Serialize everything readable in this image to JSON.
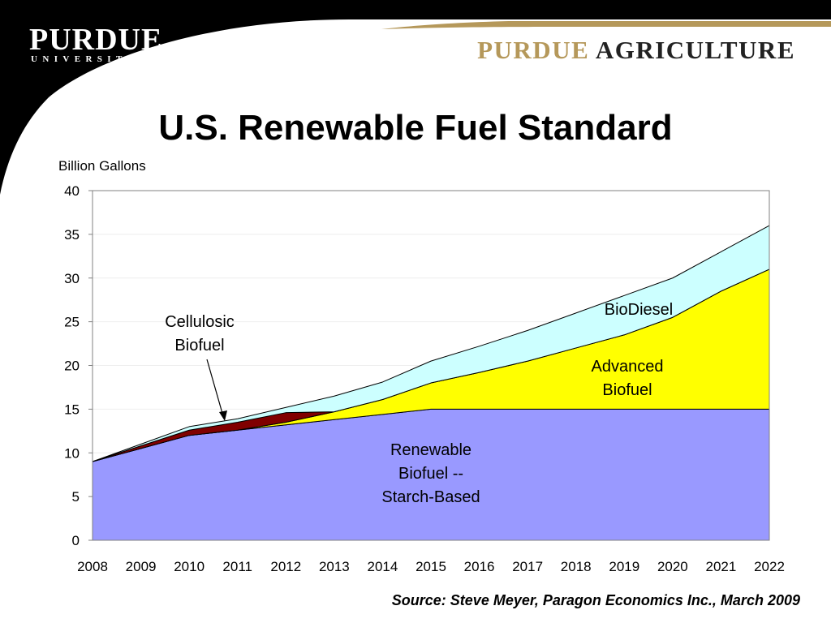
{
  "header": {
    "logo_main": "PURDUE",
    "logo_sub": "UNIVERSITY",
    "brand_part1": "PURDUE",
    "brand_part2": "AGRICULTURE"
  },
  "source": "Source: Steve Meyer, Paragon Economics Inc., March 2009",
  "colors": {
    "renewable": "#9999ff",
    "advanced": "#ffff00",
    "cellulosic": "#800000",
    "biodiesel": "#ccffff",
    "gold": "#b5985a"
  },
  "chart_data": {
    "type": "area",
    "stacked": true,
    "title": "U.S. Renewable Fuel Standard",
    "ylabel": "Billion Gallons",
    "xlabel": "",
    "ylim": [
      0,
      40
    ],
    "yticks": [
      0,
      5,
      10,
      15,
      20,
      25,
      30,
      35,
      40
    ],
    "categories": [
      "2008",
      "2009",
      "2010",
      "2011",
      "2012",
      "2013",
      "2014",
      "2015",
      "2016",
      "2017",
      "2018",
      "2019",
      "2020",
      "2021",
      "2022"
    ],
    "grid": true,
    "series": [
      {
        "name": "Renewable Biofuel -- Starch-Based",
        "values": [
          9,
          10.5,
          12,
          12.6,
          13.2,
          13.8,
          14.4,
          15,
          15,
          15,
          15,
          15,
          15,
          15,
          15
        ]
      },
      {
        "name": "Advanced Biofuel",
        "values": [
          0,
          0,
          0,
          0,
          0.3,
          0.9,
          1.7,
          3,
          4.2,
          5.5,
          7,
          8.5,
          10.5,
          13.5,
          16
        ]
      },
      {
        "name": "Cellulosic Biofuel",
        "values": [
          0,
          0.3,
          0.6,
          0.9,
          1.1,
          0,
          0,
          0,
          0,
          0,
          0,
          0,
          0,
          0,
          0
        ]
      },
      {
        "name": "BioDiesel",
        "values": [
          0,
          0.2,
          0.4,
          0.4,
          0.6,
          1.8,
          2,
          2.5,
          3,
          3.5,
          4,
          4.5,
          4.5,
          4.5,
          5
        ]
      }
    ],
    "annotations": [
      {
        "text_lines": [
          "Renewable",
          "Biofuel --",
          "Starch-Based"
        ],
        "series": "Renewable Biofuel -- Starch-Based"
      },
      {
        "text_lines": [
          "Advanced",
          "Biofuel"
        ],
        "series": "Advanced Biofuel"
      },
      {
        "text_lines": [
          "BioDiesel"
        ],
        "series": "BioDiesel"
      },
      {
        "text_lines": [
          "Cellulosic",
          "Biofuel"
        ],
        "series": "Cellulosic Biofuel",
        "arrow": true
      }
    ]
  }
}
